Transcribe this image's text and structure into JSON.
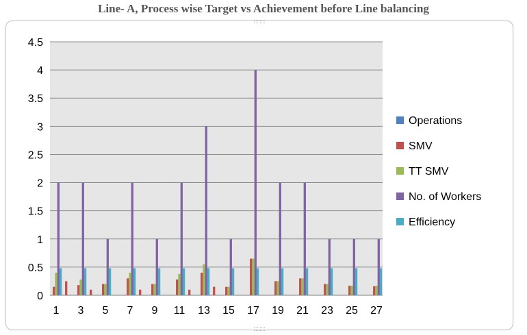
{
  "page": {
    "title": "Line- A, Process wise  Target vs Achievement before Line balancing"
  },
  "chart_data": {
    "type": "bar",
    "title": "Line- A, Process wise  Target vs Achievement before Line balancing",
    "xlabel": "",
    "ylabel": "",
    "ylim": [
      0,
      4.5
    ],
    "yticks": [
      "0",
      "0.5",
      "1",
      "1.5",
      "2",
      "2.5",
      "3",
      "3.5",
      "4",
      "4.5"
    ],
    "grid": true,
    "legend_position": "right",
    "categories": [
      "1",
      "2",
      "3",
      "4",
      "5",
      "6",
      "7",
      "8",
      "9",
      "10",
      "11",
      "12",
      "13",
      "14",
      "15",
      "16",
      "17",
      "18",
      "19",
      "20",
      "21",
      "22",
      "23",
      "24",
      "25",
      "26",
      "27"
    ],
    "x_tick_labels": [
      "1",
      "3",
      "5",
      "7",
      "9",
      "11",
      "13",
      "15",
      "17",
      "19",
      "21",
      "23",
      "25",
      "27"
    ],
    "series": [
      {
        "name": "Operations",
        "color": "#4f81bd",
        "values": [
          0,
          0,
          0,
          0,
          0,
          0,
          0,
          0,
          0,
          0,
          0,
          0,
          0,
          0,
          0,
          0,
          0,
          0,
          0,
          0,
          0,
          0,
          0,
          0,
          0,
          0,
          0
        ]
      },
      {
        "name": "SMV",
        "color": "#c0504d",
        "values": [
          0.15,
          0.25,
          0.18,
          0.1,
          0.2,
          0,
          0.3,
          0.1,
          0.2,
          0,
          0.28,
          0.1,
          0.4,
          0.15,
          0.15,
          0,
          0.65,
          0,
          0.25,
          0,
          0.3,
          0,
          0.2,
          0,
          0.17,
          0,
          0.16
        ]
      },
      {
        "name": "TT SMV",
        "color": "#9bbb59",
        "values": [
          0.4,
          0,
          0.28,
          0,
          0.2,
          0,
          0.4,
          0,
          0.2,
          0,
          0.38,
          0,
          0.55,
          0,
          0.15,
          0,
          0.65,
          0,
          0.25,
          0,
          0.3,
          0,
          0.2,
          0,
          0.17,
          0,
          0.17
        ]
      },
      {
        "name": "No. of Workers",
        "color": "#8064a2",
        "values": [
          2,
          0,
          2,
          0,
          1,
          0,
          2,
          0,
          1,
          0,
          2,
          0,
          3,
          0,
          1,
          0,
          4,
          0,
          2,
          0,
          2,
          0,
          1,
          0,
          1,
          0,
          1
        ]
      },
      {
        "name": "Efficiency",
        "color": "#4bacc6",
        "values": [
          0.48,
          0,
          0.48,
          0,
          0.48,
          0,
          0.48,
          0,
          0.48,
          0,
          0.48,
          0,
          0.48,
          0,
          0.48,
          0,
          0.48,
          0,
          0.48,
          0,
          0.48,
          0,
          0.48,
          0,
          0.48,
          0,
          0.48
        ]
      }
    ]
  }
}
